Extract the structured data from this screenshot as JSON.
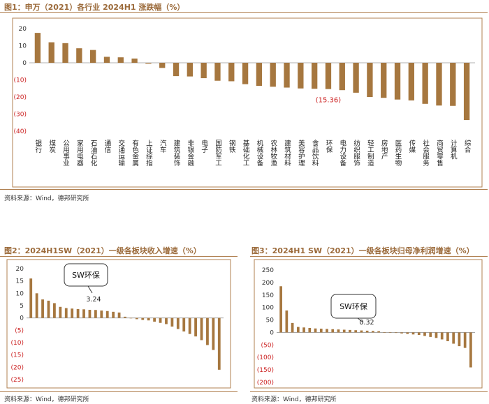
{
  "colors": {
    "bar": "#a6773f",
    "frame": "#b08050",
    "neg_tick": "#cc2222",
    "title": "#9b6a3a"
  },
  "fig1": {
    "title": "图1：申万（2021）各行业 2024H1 涨跌幅（%）",
    "source": "资料来源：Wind，德邦研究所",
    "chart_data": {
      "type": "bar",
      "categories": [
        "银行",
        "煤炭",
        "公用事业",
        "家用电器",
        "石油石化",
        "通信",
        "交通运输",
        "有色金属",
        "上证综指",
        "汽车",
        "建筑装饰",
        "非银金融",
        "电子",
        "国防军工",
        "钢铁",
        "基础化工",
        "机械设备",
        "农林牧渔",
        "建筑材料",
        "美容护理",
        "食品饮料",
        "环保",
        "电力设备",
        "纺织服饰",
        "轻工制造",
        "房地产",
        "医药生物",
        "传媒",
        "社会服务",
        "商贸零售",
        "计算机",
        "综合"
      ],
      "values": [
        17.5,
        12.0,
        11.5,
        8.5,
        7.5,
        3.5,
        3.2,
        2.5,
        -0.5,
        -3.0,
        -7.8,
        -8.0,
        -9.0,
        -10.5,
        -10.8,
        -12.5,
        -13.5,
        -14.0,
        -14.5,
        -15.0,
        -15.2,
        -15.36,
        -16.0,
        -17.5,
        -20.0,
        -20.5,
        -21.5,
        -22.0,
        -24.0,
        -25.0,
        -25.2,
        -33.5
      ],
      "yticks": [
        "20",
        "10",
        "0",
        "(10)",
        "(20)",
        "(30)",
        "(40)"
      ],
      "ylim": [
        -40,
        20
      ],
      "annotation": "(15.36)"
    }
  },
  "fig2": {
    "title": "图2：2024H1SW（2021）一级各板块收入增速（%）",
    "source": "资料来源：Wind，德邦研究所",
    "callout": "SW环保",
    "chart_data": {
      "type": "bar",
      "values": [
        16.0,
        10.0,
        7.5,
        7.0,
        6.0,
        4.5,
        4.0,
        3.8,
        3.6,
        3.5,
        3.3,
        3.24,
        3.0,
        2.8,
        2.5,
        2.2,
        0.5,
        0.0,
        -0.5,
        -0.8,
        -1.0,
        -1.5,
        -2.0,
        -2.5,
        -3.5,
        -4.5,
        -5.5,
        -6.5,
        -7.5,
        -9.0,
        -11.0,
        -13.0,
        -21.0
      ],
      "yticks": [
        "20",
        "15",
        "10",
        "5",
        "0",
        "(5)",
        "(10)",
        "(15)",
        "(20)",
        "(25)"
      ],
      "ylim": [
        -25,
        20
      ],
      "annotation": "3.24"
    }
  },
  "fig3": {
    "title": "图3：2024H1 SW（2021）一级各板块归母净利润增速（%）",
    "source": "资料来源：Wind，德邦研究所",
    "callout": "SW环保",
    "chart_data": {
      "type": "bar",
      "values": [
        185.0,
        88.0,
        38.0,
        22.0,
        20.0,
        18.0,
        16.0,
        15.0,
        14.0,
        13.0,
        12.0,
        11.0,
        10.0,
        9.0,
        8.0,
        7.0,
        6.0,
        5.0,
        0.32,
        0.0,
        -2.0,
        -4.0,
        -6.0,
        -8.0,
        -10.0,
        -14.0,
        -18.0,
        -22.0,
        -28.0,
        -35.0,
        -45.0,
        -55.0,
        -62.0,
        -140.0
      ],
      "yticks": [
        "250",
        "200",
        "150",
        "100",
        "50",
        "0",
        "(50)",
        "(100)",
        "(150)",
        "(200)"
      ],
      "ylim": [
        -200,
        250
      ],
      "annotation": "0.32"
    }
  }
}
